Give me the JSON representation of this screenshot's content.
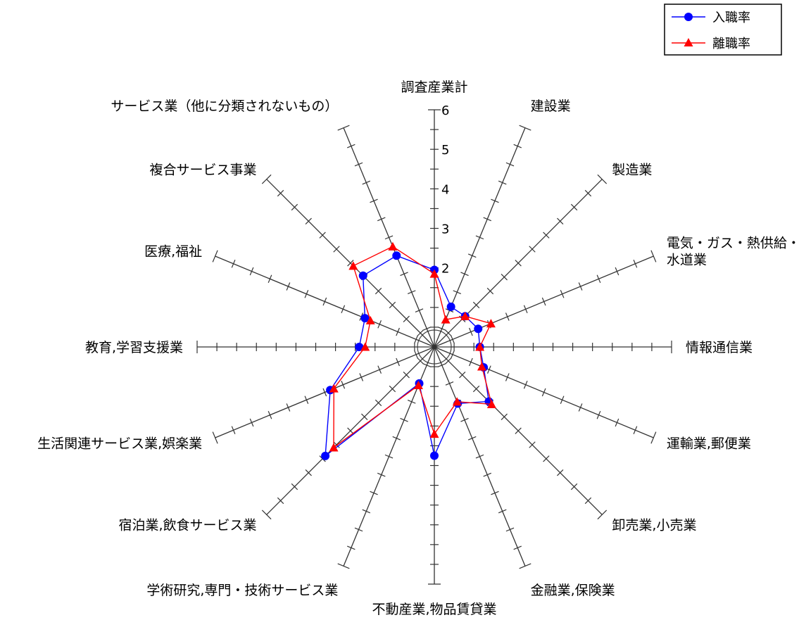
{
  "chart_data": {
    "type": "radar",
    "axes": [
      [
        "調査産業計"
      ],
      [
        "建設業"
      ],
      [
        "製造業"
      ],
      [
        "電気・ガス・熱供給・",
        "水道業"
      ],
      [
        "情報通信業"
      ],
      [
        "運輸業,郵便業"
      ],
      [
        "卸売業,小売業"
      ],
      [
        "金融業,保険業"
      ],
      [
        "不動産業,物品賃貸業"
      ],
      [
        "学術研究,専門・技術サービス業"
      ],
      [
        "宿泊業,飲食サービス業"
      ],
      [
        "生活関連サービス業,娯楽業"
      ],
      [
        "教育,学習支援業"
      ],
      [
        "医療,福祉"
      ],
      [
        "複合サービス事業"
      ],
      [
        "サービス業（他に分類されないもの）"
      ]
    ],
    "range": [
      0,
      6
    ],
    "ticks": [
      2,
      3,
      4,
      5,
      6
    ],
    "minor_step": 0.5,
    "series": [
      {
        "name": "入職率",
        "color": "#0000ff",
        "marker": "circle",
        "values": [
          1.95,
          1.1,
          1.1,
          1.2,
          1.15,
          1.35,
          1.95,
          1.55,
          2.75,
          1.0,
          3.9,
          2.85,
          1.9,
          1.9,
          2.55,
          2.5
        ]
      },
      {
        "name": "離職率",
        "color": "#ff0000",
        "marker": "triangle",
        "values": [
          1.85,
          0.75,
          1.1,
          1.55,
          1.15,
          1.3,
          2.05,
          1.5,
          2.2,
          1.05,
          3.6,
          2.75,
          1.75,
          1.75,
          2.9,
          2.75
        ]
      }
    ]
  }
}
